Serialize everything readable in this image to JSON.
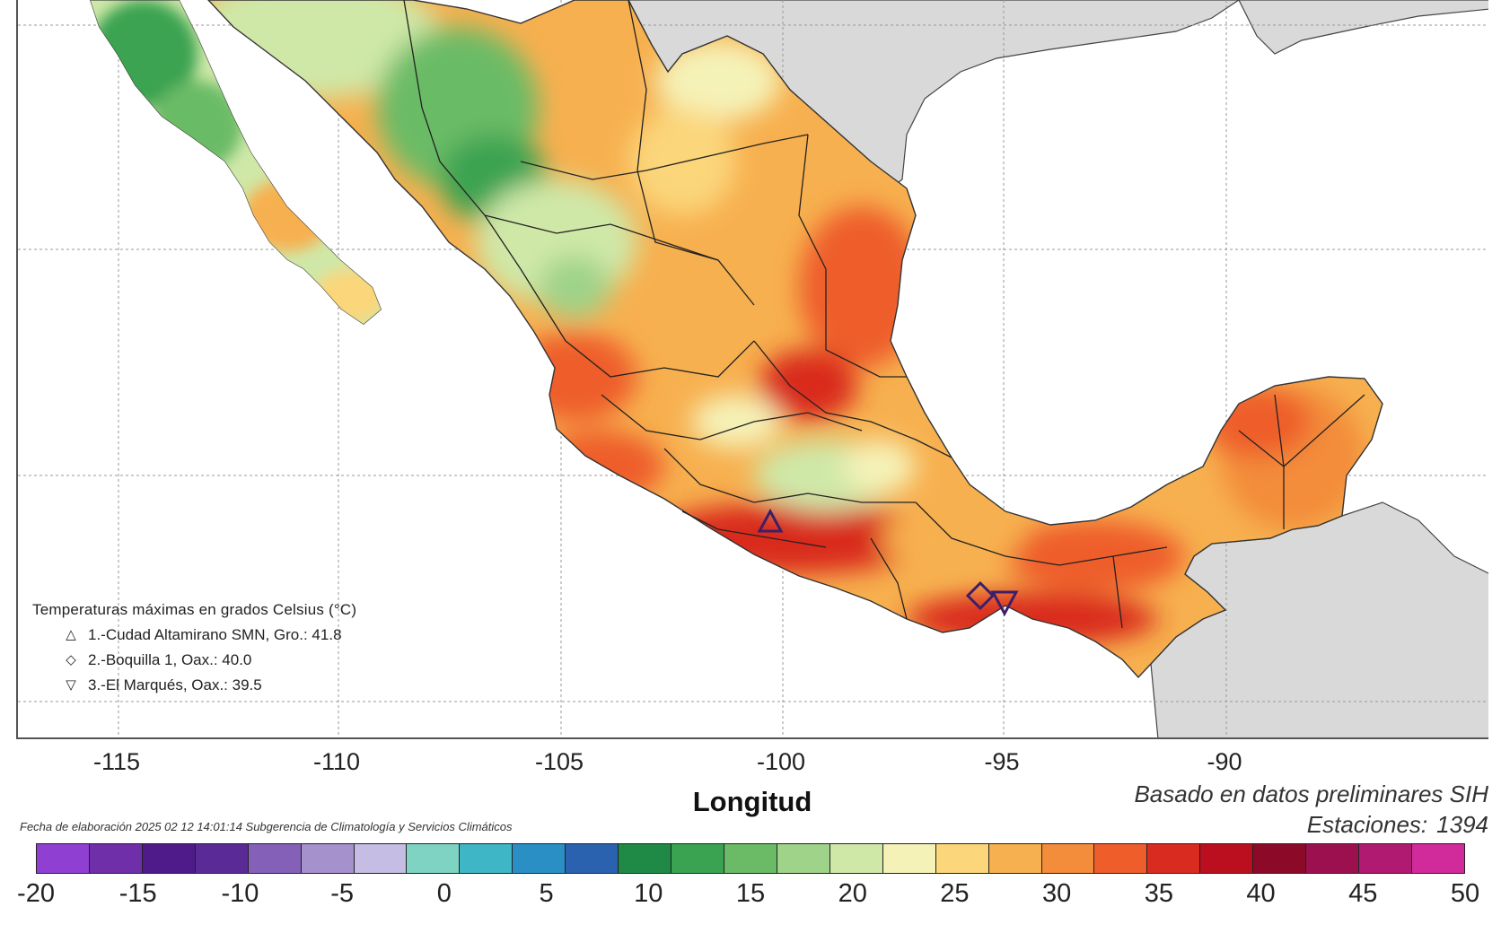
{
  "legend": {
    "title": "Temperaturas máximas en grados Celsius (°C)",
    "entries": [
      {
        "symbol": "△",
        "symbol_name": "triangle-up-icon",
        "text": "1.-Cudad Altamirano SMN, Gro.: 41.8"
      },
      {
        "symbol": "◇",
        "symbol_name": "diamond-icon",
        "text": "2.-Boquilla 1, Oax.: 40.0"
      },
      {
        "symbol": "▽",
        "symbol_name": "triangle-down-icon",
        "text": "3.-El Marqués, Oax.: 39.5"
      }
    ]
  },
  "axes": {
    "xlabel": "Longitud",
    "xticks": [
      "-115",
      "-110",
      "-105",
      "-100",
      "-95",
      "-90"
    ]
  },
  "notes": {
    "basis": "Basado en datos preliminares SIH",
    "stations_label": "Estaciones:",
    "stations_value": "1394",
    "footer": "Fecha de elaboración 2025 02 12 14:01:14 Subgerencia de Climatología y Servicios Climáticos"
  },
  "colorbar": {
    "ticks": [
      "-20",
      "-15",
      "-10",
      "-5",
      "0",
      "5",
      "10",
      "15",
      "20",
      "25",
      "30",
      "35",
      "40",
      "45",
      "50"
    ],
    "colors": [
      "#8f3fd1",
      "#6f2fa8",
      "#4f1a8a",
      "#5a2a96",
      "#8560b8",
      "#a592cc",
      "#c5bde3",
      "#7fd3c2",
      "#3fb6c6",
      "#2a8fc4",
      "#2a62b0",
      "#1f8a46",
      "#3aa351",
      "#6bbb66",
      "#9fd38a",
      "#cfe8a8",
      "#f5f2b8",
      "#fbd67a",
      "#f7b04f",
      "#f38c3b",
      "#ee5d2a",
      "#d92b1f",
      "#bb0f1f",
      "#8c0a28",
      "#9c1050",
      "#b01a70",
      "#d12a9a"
    ]
  },
  "markers": [
    {
      "type": "triangle-up",
      "lon": -100.6,
      "lat": 18.35,
      "color": "#4b2a7a"
    },
    {
      "type": "diamond",
      "lon": -95.9,
      "lat": 16.5,
      "color": "#4b2a7a"
    },
    {
      "type": "triangle-down",
      "lon": -95.4,
      "lat": 16.3,
      "color": "#4b2a7a"
    }
  ]
}
